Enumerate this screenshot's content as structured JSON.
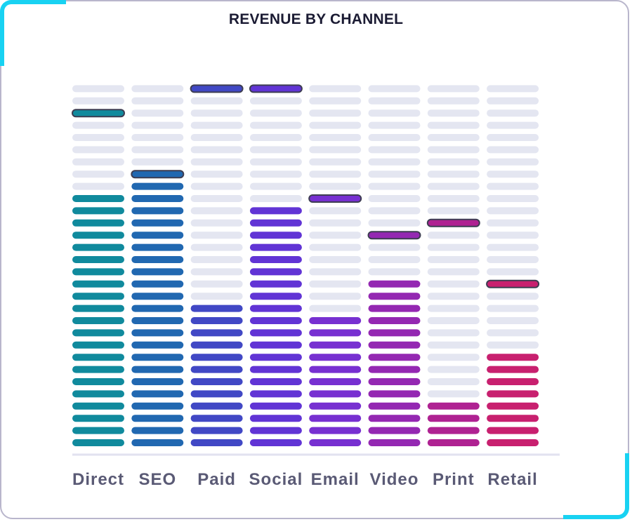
{
  "chart_data": {
    "type": "bar",
    "style": "segmented-bar",
    "title": "REVENUE BY CHANNEL",
    "xlabel": "",
    "ylabel": "",
    "categories": [
      "Direct",
      "SEO",
      "Paid",
      "Social",
      "Email",
      "Video",
      "Print",
      "Retail"
    ],
    "values": [
      21,
      22,
      12,
      20,
      11,
      14,
      4,
      8
    ],
    "peak_markers": [
      28,
      23,
      30,
      30,
      21,
      18,
      19,
      14
    ],
    "total_segments": 30,
    "ylim": [
      0,
      30
    ],
    "grid": false,
    "legend": "none"
  },
  "colors": {
    "empty_segment": "#e4e6f1",
    "marker_outline": "#3d3d52",
    "baseline": "#e2e2f0",
    "accent_frame": "#18d2f2",
    "bars": [
      "#108a9d",
      "#2168b1",
      "#4148c5",
      "#6134d5",
      "#7730d1",
      "#9428b2",
      "#af2292",
      "#c8206f"
    ]
  }
}
